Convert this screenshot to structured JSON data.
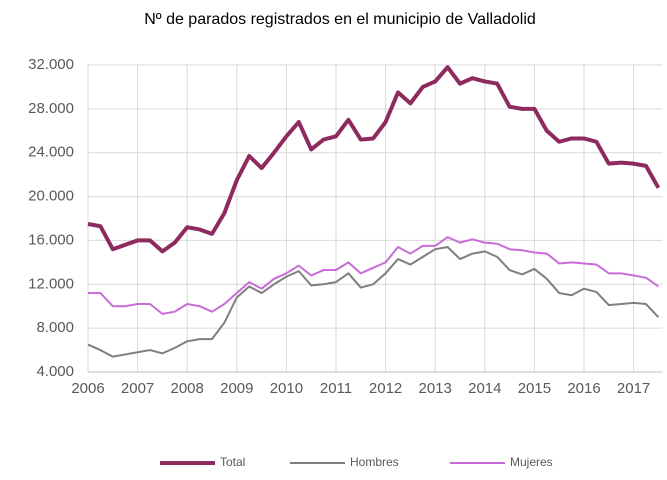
{
  "chart_data": {
    "type": "line",
    "title": "Nº de parados registrados en el municipio de Valladolid",
    "categories": [
      "2006",
      null,
      null,
      null,
      "2007",
      null,
      null,
      null,
      "2008",
      null,
      null,
      null,
      "2009",
      null,
      null,
      null,
      "2010",
      null,
      null,
      null,
      "2011",
      null,
      null,
      null,
      "2012",
      null,
      null,
      null,
      "2013",
      null,
      null,
      null,
      "2014",
      null,
      null,
      null,
      "2015",
      null,
      null,
      null,
      "2016",
      null,
      null,
      null,
      "2017",
      null,
      null
    ],
    "series": [
      {
        "name": "Total",
        "color": "#8e2a5e",
        "values": [
          17500,
          17300,
          15200,
          15600,
          16000,
          16000,
          15000,
          15800,
          17200,
          17000,
          16600,
          18500,
          21500,
          23700,
          22600,
          24000,
          25500,
          26800,
          24300,
          25200,
          25500,
          27000,
          25200,
          25300,
          26800,
          29500,
          28500,
          30000,
          30500,
          31800,
          30300,
          30800,
          30500,
          30300,
          28200,
          28000,
          28000,
          26000,
          25000,
          25300,
          25300,
          25000,
          23000,
          23100,
          23000,
          22800,
          20800
        ]
      },
      {
        "name": "Hombres",
        "color": "#7f7f7f",
        "values": [
          6500,
          6000,
          5400,
          5600,
          5800,
          6000,
          5700,
          6200,
          6800,
          7000,
          7000,
          8500,
          10800,
          11800,
          11200,
          12000,
          12700,
          13200,
          11900,
          12000,
          12200,
          13000,
          11700,
          12000,
          13000,
          14300,
          13800,
          14500,
          15200,
          15400,
          14300,
          14800,
          15000,
          14500,
          13300,
          12900,
          13400,
          12500,
          11200,
          11000,
          11600,
          11300,
          10100,
          10200,
          10300,
          10200,
          9000
        ]
      },
      {
        "name": "Mujeres",
        "color": "#c86dd7",
        "values": [
          11200,
          11200,
          10000,
          10000,
          10200,
          10200,
          9300,
          9500,
          10200,
          10000,
          9500,
          10200,
          11200,
          12200,
          11600,
          12500,
          13000,
          13700,
          12800,
          13300,
          13300,
          14000,
          13000,
          13500,
          14000,
          15400,
          14800,
          15500,
          15500,
          16300,
          15800,
          16100,
          15800,
          15700,
          15200,
          15100,
          14900,
          14800,
          13900,
          14000,
          13900,
          13800,
          13000,
          13000,
          12800,
          12600,
          11800
        ]
      }
    ],
    "ylim": [
      4000,
      32000
    ],
    "yticks": [
      {
        "value": 4000,
        "label": "4.000"
      },
      {
        "value": 8000,
        "label": "8.000"
      },
      {
        "value": 12000,
        "label": "12.000"
      },
      {
        "value": 16000,
        "label": "16.000"
      },
      {
        "value": 20000,
        "label": "20.000"
      },
      {
        "value": 24000,
        "label": "24.000"
      },
      {
        "value": 28000,
        "label": "28.000"
      },
      {
        "value": 32000,
        "label": "32.000"
      }
    ],
    "grid": true,
    "legend": "bottom"
  }
}
